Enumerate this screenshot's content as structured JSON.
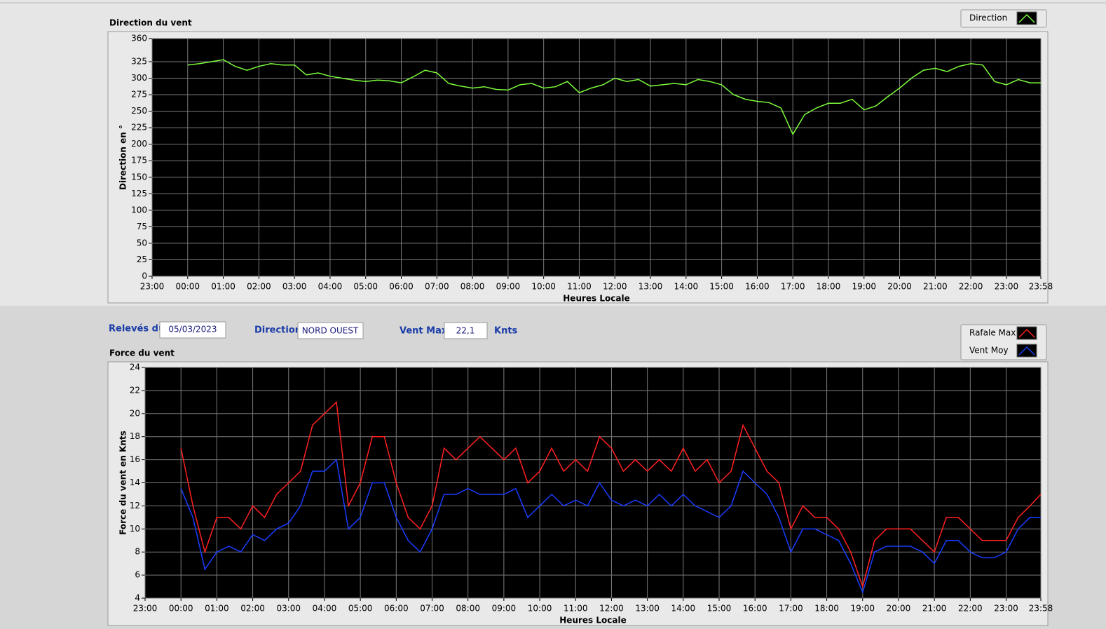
{
  "chart_data": [
    {
      "type": "line",
      "title": "Direction du vent",
      "xlabel": "Heures Locale",
      "ylabel": "Direction en °",
      "x": [
        "00:00",
        "00:20",
        "00:40",
        "01:00",
        "01:20",
        "01:40",
        "02:00",
        "02:20",
        "02:40",
        "03:00",
        "03:20",
        "03:40",
        "04:00",
        "04:20",
        "04:40",
        "05:00",
        "05:20",
        "05:40",
        "06:00",
        "06:20",
        "06:40",
        "07:00",
        "07:20",
        "07:40",
        "08:00",
        "08:20",
        "08:40",
        "09:00",
        "09:20",
        "09:40",
        "10:00",
        "10:20",
        "10:40",
        "11:00",
        "11:20",
        "11:40",
        "12:00",
        "12:20",
        "12:40",
        "13:00",
        "13:20",
        "13:40",
        "14:00",
        "14:20",
        "14:40",
        "15:00",
        "15:20",
        "15:40",
        "16:00",
        "16:20",
        "16:40",
        "17:00",
        "17:20",
        "17:40",
        "18:00",
        "18:20",
        "18:40",
        "19:00",
        "19:20",
        "19:40",
        "20:00",
        "20:20",
        "20:40",
        "21:00",
        "21:20",
        "21:40",
        "22:00",
        "22:20",
        "22:40",
        "23:00",
        "23:20",
        "23:40",
        "23:58"
      ],
      "xlim": [
        "23:00",
        "23:58"
      ],
      "xticks": [
        "23:00",
        "00:00",
        "01:00",
        "02:00",
        "03:00",
        "04:00",
        "05:00",
        "06:00",
        "07:00",
        "08:00",
        "09:00",
        "10:00",
        "11:00",
        "12:00",
        "13:00",
        "14:00",
        "15:00",
        "16:00",
        "17:00",
        "18:00",
        "19:00",
        "20:00",
        "21:00",
        "22:00",
        "23:00",
        "23:58"
      ],
      "ylim": [
        0,
        360
      ],
      "yticks": [
        0,
        25,
        50,
        75,
        100,
        125,
        150,
        175,
        200,
        225,
        250,
        275,
        300,
        325,
        360
      ],
      "grid": true,
      "legend": "top-right",
      "series": [
        {
          "name": "Direction",
          "color": "#7cfc3c",
          "values": [
            320,
            322,
            325,
            328,
            318,
            312,
            318,
            322,
            320,
            320,
            305,
            308,
            303,
            300,
            297,
            295,
            297,
            296,
            293,
            302,
            312,
            308,
            292,
            288,
            285,
            287,
            283,
            282,
            290,
            292,
            285,
            287,
            295,
            278,
            285,
            290,
            300,
            295,
            298,
            288,
            290,
            292,
            290,
            298,
            295,
            290,
            275,
            268,
            265,
            263,
            255,
            215,
            245,
            255,
            262,
            262,
            268,
            252,
            258,
            272,
            285,
            300,
            312,
            315,
            310,
            318,
            322,
            320,
            295,
            290,
            298,
            293,
            293
          ]
        }
      ]
    },
    {
      "type": "line",
      "title": "Force du vent",
      "xlabel": "Heures Locale",
      "ylabel": "Force du vent en Knts",
      "x": [
        "00:00",
        "00:20",
        "00:40",
        "01:00",
        "01:20",
        "01:40",
        "02:00",
        "02:20",
        "02:40",
        "03:00",
        "03:20",
        "03:40",
        "04:00",
        "04:20",
        "04:40",
        "05:00",
        "05:20",
        "05:40",
        "06:00",
        "06:20",
        "06:40",
        "07:00",
        "07:20",
        "07:40",
        "08:00",
        "08:20",
        "08:40",
        "09:00",
        "09:20",
        "09:40",
        "10:00",
        "10:20",
        "10:40",
        "11:00",
        "11:20",
        "11:40",
        "12:00",
        "12:20",
        "12:40",
        "13:00",
        "13:20",
        "13:40",
        "14:00",
        "14:20",
        "14:40",
        "15:00",
        "15:20",
        "15:40",
        "16:00",
        "16:20",
        "16:40",
        "17:00",
        "17:20",
        "17:40",
        "18:00",
        "18:20",
        "18:40",
        "19:00",
        "19:20",
        "19:40",
        "20:00",
        "20:20",
        "20:40",
        "21:00",
        "21:20",
        "21:40",
        "22:00",
        "22:20",
        "22:40",
        "23:00",
        "23:20",
        "23:40",
        "23:58"
      ],
      "xlim": [
        "23:00",
        "23:58"
      ],
      "xticks": [
        "23:00",
        "00:00",
        "01:00",
        "02:00",
        "03:00",
        "04:00",
        "05:00",
        "06:00",
        "07:00",
        "08:00",
        "09:00",
        "10:00",
        "11:00",
        "12:00",
        "13:00",
        "14:00",
        "15:00",
        "16:00",
        "17:00",
        "18:00",
        "19:00",
        "20:00",
        "21:00",
        "22:00",
        "23:00",
        "23:58"
      ],
      "ylim": [
        4,
        24
      ],
      "yticks": [
        4,
        6,
        8,
        10,
        12,
        14,
        16,
        18,
        20,
        22,
        24
      ],
      "grid": true,
      "legend": "top-right",
      "series": [
        {
          "name": "Rafale Max",
          "color": "#ff2020",
          "values": [
            17,
            12,
            8,
            11,
            11,
            10,
            12,
            11,
            13,
            14,
            15,
            19,
            20,
            21,
            12,
            14,
            18,
            18,
            14,
            11,
            10,
            12,
            17,
            16,
            17,
            18,
            17,
            16,
            17,
            14,
            15,
            17,
            15,
            16,
            15,
            18,
            17,
            15,
            16,
            15,
            16,
            15,
            17,
            15,
            16,
            14,
            15,
            19,
            17,
            15,
            14,
            10,
            12,
            11,
            11,
            10,
            8,
            5,
            9,
            10,
            10,
            10,
            9,
            8,
            11,
            11,
            10,
            9,
            9,
            9,
            11,
            12,
            13
          ]
        },
        {
          "name": "Vent Moy",
          "color": "#1a3cff",
          "values": [
            13.5,
            11,
            6.5,
            8,
            8.5,
            8,
            9.5,
            9,
            10,
            10.5,
            12,
            15,
            15,
            16,
            10,
            11,
            14,
            14,
            11,
            9,
            8,
            10,
            13,
            13,
            13.5,
            13,
            13,
            13,
            13.5,
            11,
            12,
            13,
            12,
            12.5,
            12,
            14,
            12.5,
            12,
            12.5,
            12,
            13,
            12,
            13,
            12,
            11.5,
            11,
            12,
            15,
            14,
            13,
            11,
            8,
            10,
            10,
            9.5,
            9,
            7,
            4.5,
            8,
            8.5,
            8.5,
            8.5,
            8,
            7,
            9,
            9,
            8,
            7.5,
            7.5,
            8,
            10,
            11,
            11
          ]
        }
      ]
    }
  ],
  "form": {
    "date_label": "Relevés du",
    "date": "05/03/2023",
    "direction_label": "Direction",
    "direction": "NORD OUEST",
    "max_label": "Vent Max",
    "max": "22,1",
    "max_unit": "Knts"
  }
}
